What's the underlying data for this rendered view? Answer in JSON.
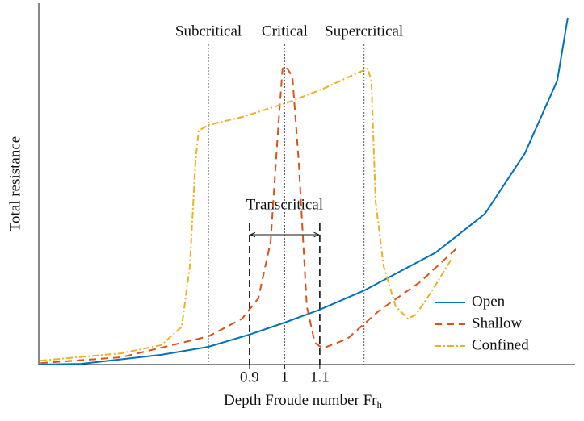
{
  "chart_data": {
    "type": "line",
    "xlabel": "Depth Froude number Fr",
    "xlabel_subscript": "h",
    "ylabel": "Total resistance",
    "xlim": [
      0.3,
      1.82
    ],
    "ylim": [
      0,
      100
    ],
    "xticks": [
      0.9,
      1,
      1.1
    ],
    "legend": "lower right",
    "regions": [
      {
        "label": "Subcritical",
        "x": 0.783
      },
      {
        "label": "Critical",
        "x": 1
      },
      {
        "label": "Supercritical",
        "x": 1.226
      }
    ],
    "span": {
      "label": "Transcritical",
      "x": [
        0.9,
        1.1
      ]
    },
    "series": [
      {
        "name": "Open",
        "color": "#0072bd",
        "dash": "none",
        "x": [
          0.3,
          0.42,
          0.649,
          0.783,
          0.9,
          1.0,
          1.1,
          1.226,
          1.43,
          1.57,
          1.684,
          1.776,
          1.806
        ],
        "values": [
          0,
          0.2,
          2.7,
          4.9,
          8.3,
          11.6,
          15.2,
          20.5,
          31,
          41.7,
          58.5,
          78.6,
          96
        ]
      },
      {
        "name": "Shallow",
        "color": "#d95319",
        "dash": "9 6",
        "x": [
          0.305,
          0.534,
          0.783,
          0.879,
          0.925,
          0.96,
          0.983,
          0.994,
          1.003,
          1.022,
          1.04,
          1.063,
          1.086,
          1.109,
          1.178,
          1.27,
          1.385,
          1.489
        ],
        "values": [
          0.4,
          2,
          7.8,
          12.7,
          18.3,
          33.9,
          67.4,
          81.9,
          82.6,
          79.7,
          56.3,
          16.1,
          6,
          4.5,
          7.1,
          15,
          22.8,
          32.1
        ]
      },
      {
        "name": "Confined",
        "color": "#edb120",
        "dash": "8 3 2 3",
        "x": [
          0.305,
          0.534,
          0.649,
          0.707,
          0.73,
          0.746,
          0.755,
          0.783,
          0.879,
          1.003,
          1.109,
          1.201,
          1.236,
          1.247,
          1.259,
          1.282,
          1.316,
          1.351,
          1.374,
          1.42,
          1.477
        ],
        "values": [
          1.1,
          3.1,
          5.4,
          10.5,
          27.2,
          56.3,
          64.7,
          66.3,
          68.5,
          72.3,
          76.3,
          80.4,
          81.9,
          78.6,
          45.1,
          27.2,
          16.1,
          12.7,
          13.8,
          20.5,
          29.5
        ]
      }
    ]
  }
}
